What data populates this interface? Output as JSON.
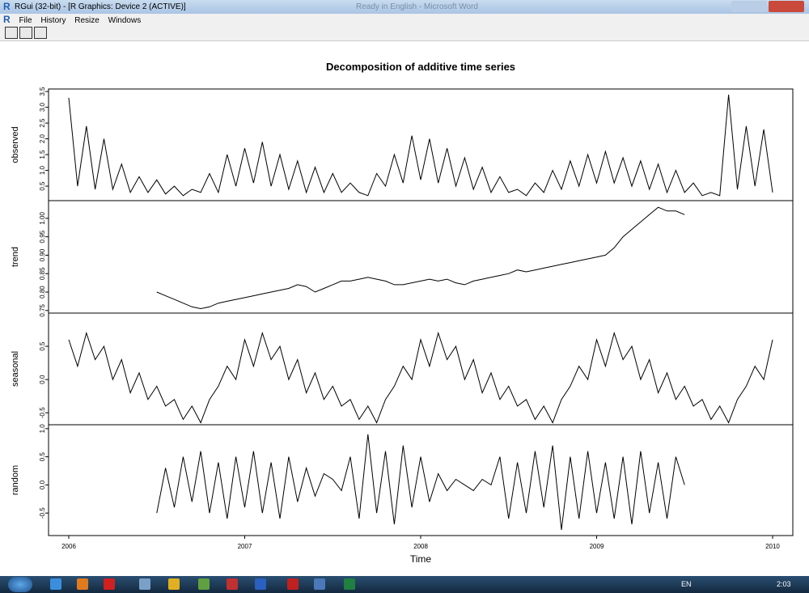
{
  "window": {
    "title": "RGui (32-bit) - [R Graphics: Device 2 (ACTIVE)]",
    "background_title": "Ready in English - Microsoft Word",
    "menu": [
      "File",
      "History",
      "Resize",
      "Windows"
    ]
  },
  "taskbar": {
    "language": "EN",
    "clock": "2:03"
  },
  "chart_data": [
    {
      "type": "line",
      "title": "Decomposition of additive time series",
      "ylabel": "observed",
      "color": "#000000",
      "xlim": [
        2005.885,
        2010.115
      ],
      "ylim": [
        0.04,
        3.58
      ],
      "yticks": [
        0.5,
        {
          "value": 1,
          "label": "1.0"
        },
        1.5,
        {
          "value": 2,
          "label": "2.0"
        },
        2.5,
        {
          "value": 3,
          "label": "3.0"
        },
        3.5
      ],
      "x": [
        2006,
        2006.05,
        2006.1,
        2006.15,
        2006.2,
        2006.25,
        2006.3,
        2006.35,
        2006.4,
        2006.45,
        2006.5,
        2006.55,
        2006.6,
        2006.65,
        2006.7,
        2006.75,
        2006.8,
        2006.85,
        2006.9,
        2006.95,
        2007,
        2007.05,
        2007.1,
        2007.15,
        2007.2,
        2007.25,
        2007.3,
        2007.35,
        2007.4,
        2007.45,
        2007.5,
        2007.55,
        2007.6,
        2007.65,
        2007.7,
        2007.75,
        2007.8,
        2007.85,
        2007.9,
        2007.95,
        2008,
        2008.05,
        2008.1,
        2008.15,
        2008.2,
        2008.25,
        2008.3,
        2008.35,
        2008.4,
        2008.45,
        2008.5,
        2008.55,
        2008.6,
        2008.65,
        2008.7,
        2008.75,
        2008.8,
        2008.85,
        2008.9,
        2008.95,
        2009,
        2009.05,
        2009.1,
        2009.15,
        2009.2,
        2009.25,
        2009.3,
        2009.35,
        2009.4,
        2009.45,
        2009.5,
        2009.55,
        2009.6,
        2009.65,
        2009.7,
        2009.75,
        2009.8,
        2009.85,
        2009.9,
        2009.95,
        2010
      ],
      "values": [
        3.3,
        0.5,
        2.4,
        0.4,
        2.0,
        0.4,
        1.2,
        0.3,
        0.8,
        0.3,
        0.7,
        0.25,
        0.5,
        0.2,
        0.4,
        0.3,
        0.9,
        0.3,
        1.5,
        0.5,
        1.7,
        0.6,
        1.9,
        0.5,
        1.5,
        0.4,
        1.3,
        0.3,
        1.1,
        0.3,
        0.9,
        0.3,
        0.6,
        0.3,
        0.2,
        0.9,
        0.5,
        1.5,
        0.6,
        2.1,
        0.7,
        2.0,
        0.6,
        1.7,
        0.5,
        1.4,
        0.4,
        1.1,
        0.3,
        0.8,
        0.3,
        0.4,
        0.2,
        0.6,
        0.3,
        1.0,
        0.4,
        1.3,
        0.5,
        1.5,
        0.6,
        1.6,
        0.6,
        1.4,
        0.5,
        1.3,
        0.4,
        1.2,
        0.3,
        1.0,
        0.3,
        0.6,
        0.2,
        0.3,
        0.2,
        3.4,
        0.4,
        2.4,
        0.5,
        2.3,
        0.3
      ]
    },
    {
      "type": "line",
      "ylabel": "trend",
      "color": "#000000",
      "xlim": [
        2005.885,
        2010.115
      ],
      "ylim": [
        0.743,
        1.048
      ],
      "yticks": [
        0.75,
        {
          "value": 0.8,
          "label": "0.80"
        },
        0.85,
        {
          "value": 0.9,
          "label": "0.90"
        },
        0.95,
        {
          "value": 1,
          "label": "1.00"
        }
      ],
      "x": [
        2006,
        2006.05,
        2006.1,
        2006.15,
        2006.2,
        2006.25,
        2006.3,
        2006.35,
        2006.4,
        2006.45,
        2006.5,
        2006.55,
        2006.6,
        2006.65,
        2006.7,
        2006.75,
        2006.8,
        2006.85,
        2006.9,
        2006.95,
        2007,
        2007.05,
        2007.1,
        2007.15,
        2007.2,
        2007.25,
        2007.3,
        2007.35,
        2007.4,
        2007.45,
        2007.5,
        2007.55,
        2007.6,
        2007.65,
        2007.7,
        2007.75,
        2007.8,
        2007.85,
        2007.9,
        2007.95,
        2008,
        2008.05,
        2008.1,
        2008.15,
        2008.2,
        2008.25,
        2008.3,
        2008.35,
        2008.4,
        2008.45,
        2008.5,
        2008.55,
        2008.6,
        2008.65,
        2008.7,
        2008.75,
        2008.8,
        2008.85,
        2008.9,
        2008.95,
        2009,
        2009.05,
        2009.1,
        2009.15,
        2009.2,
        2009.25,
        2009.3,
        2009.35,
        2009.4,
        2009.45,
        2009.5,
        2009.55,
        2009.6,
        2009.65,
        2009.7,
        2009.75,
        2009.8,
        2009.85,
        2009.9,
        2009.95,
        2010
      ],
      "values": [
        null,
        null,
        null,
        null,
        null,
        null,
        null,
        null,
        null,
        null,
        0.8,
        0.79,
        0.78,
        0.77,
        0.76,
        0.755,
        0.76,
        0.77,
        0.775,
        0.78,
        0.785,
        0.79,
        0.795,
        0.8,
        0.805,
        0.81,
        0.82,
        0.815,
        0.8,
        0.81,
        0.82,
        0.83,
        0.83,
        0.835,
        0.84,
        0.835,
        0.83,
        0.82,
        0.82,
        0.825,
        0.83,
        0.835,
        0.83,
        0.835,
        0.825,
        0.82,
        0.83,
        0.835,
        0.84,
        0.845,
        0.85,
        0.86,
        0.855,
        0.86,
        0.865,
        0.87,
        0.875,
        0.88,
        0.885,
        0.89,
        0.895,
        0.9,
        0.92,
        0.95,
        0.97,
        0.99,
        1.01,
        1.03,
        1.02,
        1.02,
        1.01,
        null,
        null,
        null,
        null,
        null,
        null,
        null,
        null,
        null,
        null
      ]
    },
    {
      "type": "line",
      "ylabel": "seasonal",
      "color": "#000000",
      "xlim": [
        2005.885,
        2010.115
      ],
      "ylim": [
        -0.68,
        1.0
      ],
      "yticks": [
        -0.5,
        {
          "value": 0,
          "label": "0.0"
        },
        0.5
      ],
      "x": [
        2006,
        2006.05,
        2006.1,
        2006.15,
        2006.2,
        2006.25,
        2006.3,
        2006.35,
        2006.4,
        2006.45,
        2006.5,
        2006.55,
        2006.6,
        2006.65,
        2006.7,
        2006.75,
        2006.8,
        2006.85,
        2006.9,
        2006.95,
        2007,
        2007.05,
        2007.1,
        2007.15,
        2007.2,
        2007.25,
        2007.3,
        2007.35,
        2007.4,
        2007.45,
        2007.5,
        2007.55,
        2007.6,
        2007.65,
        2007.7,
        2007.75,
        2007.8,
        2007.85,
        2007.9,
        2007.95,
        2008,
        2008.05,
        2008.1,
        2008.15,
        2008.2,
        2008.25,
        2008.3,
        2008.35,
        2008.4,
        2008.45,
        2008.5,
        2008.55,
        2008.6,
        2008.65,
        2008.7,
        2008.75,
        2008.8,
        2008.85,
        2008.9,
        2008.95,
        2009,
        2009.05,
        2009.1,
        2009.15,
        2009.2,
        2009.25,
        2009.3,
        2009.35,
        2009.4,
        2009.45,
        2009.5,
        2009.55,
        2009.6,
        2009.65,
        2009.7,
        2009.75,
        2009.8,
        2009.85,
        2009.9,
        2009.95,
        2010
      ],
      "values": [
        0.6,
        0.2,
        0.7,
        0.3,
        0.5,
        0.0,
        0.3,
        -0.2,
        0.1,
        -0.3,
        -0.1,
        -0.4,
        -0.3,
        -0.6,
        -0.4,
        -0.65,
        -0.3,
        -0.1,
        0.2,
        0.0,
        0.6,
        0.2,
        0.7,
        0.3,
        0.5,
        0.0,
        0.3,
        -0.2,
        0.1,
        -0.3,
        -0.1,
        -0.4,
        -0.3,
        -0.6,
        -0.4,
        -0.65,
        -0.3,
        -0.1,
        0.2,
        0.0,
        0.6,
        0.2,
        0.7,
        0.3,
        0.5,
        0.0,
        0.3,
        -0.2,
        0.1,
        -0.3,
        -0.1,
        -0.4,
        -0.3,
        -0.6,
        -0.4,
        -0.65,
        -0.3,
        -0.1,
        0.2,
        0.0,
        0.6,
        0.2,
        0.7,
        0.3,
        0.5,
        0.0,
        0.3,
        -0.2,
        0.1,
        -0.3,
        -0.1,
        -0.4,
        -0.3,
        -0.6,
        -0.4,
        -0.65,
        -0.3,
        -0.1,
        0.2,
        0.0,
        0.6
      ]
    },
    {
      "type": "line",
      "ylabel": "random",
      "xlabel": "Time",
      "color": "#000000",
      "xlim": [
        2005.885,
        2010.115
      ],
      "ylim": [
        -0.9,
        1.07
      ],
      "yticks": [
        -0.5,
        {
          "value": 0,
          "label": "0.0"
        },
        0.5,
        {
          "value": 1,
          "label": "1.0"
        }
      ],
      "xticks": [
        2006,
        2007,
        2008,
        2009,
        2010
      ],
      "x": [
        2006,
        2006.05,
        2006.1,
        2006.15,
        2006.2,
        2006.25,
        2006.3,
        2006.35,
        2006.4,
        2006.45,
        2006.5,
        2006.55,
        2006.6,
        2006.65,
        2006.7,
        2006.75,
        2006.8,
        2006.85,
        2006.9,
        2006.95,
        2007,
        2007.05,
        2007.1,
        2007.15,
        2007.2,
        2007.25,
        2007.3,
        2007.35,
        2007.4,
        2007.45,
        2007.5,
        2007.55,
        2007.6,
        2007.65,
        2007.7,
        2007.75,
        2007.8,
        2007.85,
        2007.9,
        2007.95,
        2008,
        2008.05,
        2008.1,
        2008.15,
        2008.2,
        2008.25,
        2008.3,
        2008.35,
        2008.4,
        2008.45,
        2008.5,
        2008.55,
        2008.6,
        2008.65,
        2008.7,
        2008.75,
        2008.8,
        2008.85,
        2008.9,
        2008.95,
        2009,
        2009.05,
        2009.1,
        2009.15,
        2009.2,
        2009.25,
        2009.3,
        2009.35,
        2009.4,
        2009.45,
        2009.5,
        2009.55,
        2009.6,
        2009.65,
        2009.7,
        2009.75,
        2009.8,
        2009.85,
        2009.9,
        2009.95,
        2010
      ],
      "values": [
        null,
        null,
        null,
        null,
        null,
        null,
        null,
        null,
        null,
        null,
        -0.5,
        0.3,
        -0.4,
        0.5,
        -0.3,
        0.6,
        -0.5,
        0.4,
        -0.6,
        0.5,
        -0.4,
        0.6,
        -0.5,
        0.4,
        -0.6,
        0.5,
        -0.3,
        0.3,
        -0.2,
        0.2,
        0.1,
        -0.1,
        0.5,
        -0.6,
        0.9,
        -0.5,
        0.6,
        -0.7,
        0.7,
        -0.4,
        0.5,
        -0.3,
        0.2,
        -0.1,
        0.1,
        0.0,
        -0.1,
        0.1,
        0.0,
        0.5,
        -0.6,
        0.4,
        -0.5,
        0.6,
        -0.4,
        0.7,
        -0.8,
        0.5,
        -0.6,
        0.6,
        -0.5,
        0.4,
        -0.6,
        0.5,
        -0.7,
        0.6,
        -0.5,
        0.4,
        -0.6,
        0.5,
        0.0,
        null,
        null,
        null,
        null,
        null,
        null,
        null,
        null,
        null,
        null
      ]
    }
  ]
}
